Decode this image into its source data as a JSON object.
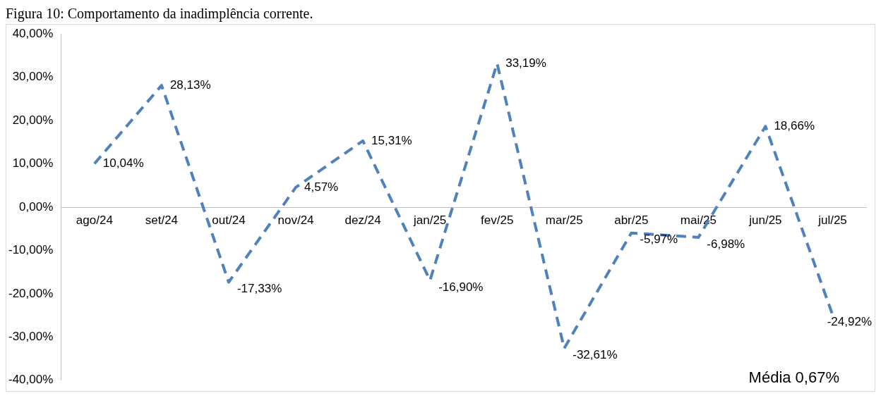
{
  "chart_data": {
    "type": "line",
    "title": "Figura 10: Comportamento da inadimplência corrente.",
    "categories": [
      "ago/24",
      "set/24",
      "out/24",
      "nov/24",
      "dez/24",
      "jan/25",
      "fev/25",
      "mar/25",
      "abr/25",
      "mai/25",
      "jun/25",
      "jul/25"
    ],
    "series": [
      {
        "color": "#4f81bd",
        "values": [
          10.04,
          28.13,
          -17.33,
          4.57,
          15.31,
          -16.9,
          33.19,
          -32.61,
          -5.97,
          -6.98,
          18.66,
          -24.92
        ],
        "value_labels": [
          "10,04%",
          "28,13%",
          "-17,33%",
          "4,57%",
          "15,31%",
          "-16,90%",
          "33,19%",
          "-32,61%",
          "-5,97%",
          "-6,98%",
          "18,66%",
          "-24,92%"
        ]
      }
    ],
    "ylim": [
      -40,
      40
    ],
    "yticks": [
      {
        "value": -40,
        "label": "-40,00%"
      },
      {
        "value": -30,
        "label": "-30,00%"
      },
      {
        "value": -20,
        "label": "-20,00%"
      },
      {
        "value": -10,
        "label": "-10,00%"
      },
      {
        "value": 0,
        "label": "0,00%"
      },
      {
        "value": 10,
        "label": "10,00%"
      },
      {
        "value": 20,
        "label": "20,00%"
      },
      {
        "value": 30,
        "label": "30,00%"
      },
      {
        "value": 40,
        "label": "40,00%"
      }
    ],
    "annotations": [
      "Média 0,67%"
    ],
    "grid": false,
    "legend": false,
    "marker": "none",
    "line_style": "dashed"
  }
}
